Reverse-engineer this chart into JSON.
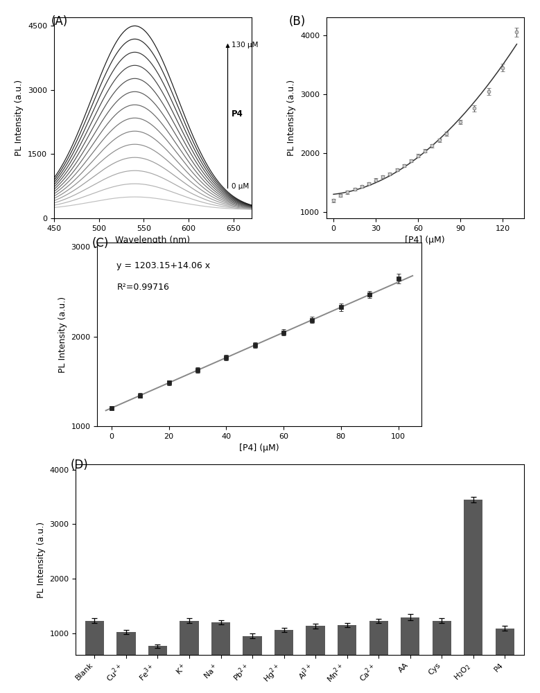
{
  "panel_A": {
    "xlabel": "Wavelength (nm)",
    "ylabel": "PL Intensity (a.u.)",
    "xlim": [
      450,
      670
    ],
    "ylim": [
      0,
      4700
    ],
    "yticks": [
      0,
      1500,
      3000,
      4500
    ],
    "xticks": [
      450,
      500,
      550,
      600,
      650
    ],
    "n_curves": 14,
    "peak_wavelength": 540,
    "label_top": "130 μM",
    "label_mid": "P4",
    "label_bot": "0 μM"
  },
  "panel_B": {
    "xlabel": "[P4] (μM)",
    "ylabel": "PL Intensity (a.u.)",
    "xlim": [
      -5,
      135
    ],
    "ylim": [
      900,
      4300
    ],
    "yticks": [
      1000,
      2000,
      3000,
      4000
    ],
    "xticks": [
      0,
      30,
      60,
      90,
      120
    ],
    "x_data": [
      0,
      5,
      10,
      15,
      20,
      25,
      30,
      35,
      40,
      45,
      50,
      55,
      60,
      65,
      70,
      75,
      80,
      90,
      100,
      110,
      120,
      130
    ],
    "y_data": [
      1200,
      1290,
      1340,
      1390,
      1440,
      1490,
      1550,
      1600,
      1650,
      1720,
      1790,
      1870,
      1960,
      2040,
      2130,
      2220,
      2330,
      2530,
      2760,
      3050,
      3450,
      4050
    ],
    "y_err": [
      25,
      25,
      25,
      25,
      25,
      25,
      25,
      25,
      25,
      25,
      25,
      25,
      30,
      30,
      30,
      30,
      35,
      40,
      50,
      60,
      70,
      80
    ]
  },
  "panel_C": {
    "xlabel": "[P4] (μM)",
    "ylabel": "PL Intensity (a.u.)",
    "xlim": [
      -5,
      108
    ],
    "ylim": [
      1000,
      3050
    ],
    "yticks": [
      1000,
      2000,
      3000
    ],
    "xticks": [
      0,
      20,
      40,
      60,
      80,
      100
    ],
    "x_data": [
      0,
      10,
      20,
      30,
      40,
      50,
      60,
      70,
      80,
      90,
      100
    ],
    "y_data": [
      1203,
      1344,
      1484,
      1625,
      1765,
      1906,
      2047,
      2187,
      2328,
      2468,
      2650
    ],
    "y_err": [
      20,
      25,
      25,
      30,
      30,
      30,
      35,
      35,
      40,
      40,
      55
    ],
    "fit_label_line1": "y = 1203.15+14.06 x",
    "fit_label_line2": "R²=0.99716",
    "intercept": 1203.15,
    "slope": 14.06
  },
  "panel_D": {
    "ylabel": "PL Intensity (a.u.)",
    "ylim": [
      600,
      4100
    ],
    "yticks": [
      1000,
      2000,
      3000,
      4000
    ],
    "categories": [
      "Blank",
      "Cu$^{2+}$",
      "Fe$^{3+}$",
      "K$^+$",
      "Na$^+$",
      "Pb$^{2+}$",
      "Hg$^{2+}$",
      "Al$^{3+}$",
      "Mn$^{2+}$",
      "Ca$^{2+}$",
      "AA",
      "Cys",
      "H$_2$O$_2$",
      "P4"
    ],
    "values": [
      1230,
      1020,
      760,
      1230,
      1200,
      950,
      1060,
      1130,
      1150,
      1220,
      1290,
      1230,
      3450,
      1090
    ],
    "errors": [
      50,
      40,
      35,
      40,
      40,
      50,
      40,
      40,
      40,
      40,
      55,
      45,
      55,
      40
    ],
    "bar_color": "#595959"
  },
  "bg": "#ffffff"
}
